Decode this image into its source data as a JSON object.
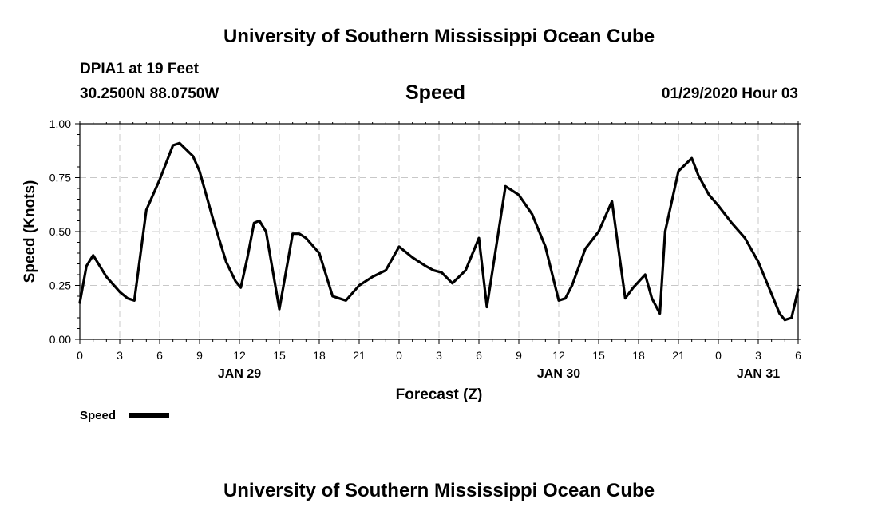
{
  "header": {
    "title_top": "University of Southern Mississippi Ocean Cube",
    "station": "DPIA1 at 19 Feet",
    "coords": "30.2500N 88.0750W",
    "plot_title": "Speed",
    "datetime": "01/29/2020 Hour 03"
  },
  "footer": {
    "title_bottom": "University of Southern Mississippi Ocean Cube"
  },
  "legend": {
    "label": "Speed"
  },
  "colors": {
    "line": "#000000",
    "grid": "#c8c8c8"
  },
  "chart_data": {
    "type": "line",
    "title": "Speed",
    "xlabel": "Forecast (Z)",
    "ylabel": "Speed (Knots)",
    "ylim": [
      0,
      1
    ],
    "xlim": [
      0,
      54
    ],
    "grid": true,
    "legend_placement": "bottom-left",
    "yticks": [
      "0.00",
      "0.25",
      "0.50",
      "0.75",
      "1.00"
    ],
    "xticks": [
      "0",
      "3",
      "6",
      "9",
      "12",
      "15",
      "18",
      "21",
      "0",
      "3",
      "6",
      "9",
      "12",
      "15",
      "18",
      "21",
      "0",
      "3",
      "6"
    ],
    "date_labels": [
      {
        "label": "JAN 29",
        "hour": 12
      },
      {
        "label": "JAN 30",
        "hour": 36
      },
      {
        "label": "JAN 31",
        "hour": 51
      }
    ],
    "series": [
      {
        "name": "Speed",
        "x": [
          0,
          0.5,
          1,
          2,
          3,
          3.6,
          4.1,
          5,
          6,
          7,
          7.5,
          8.5,
          9,
          10,
          11,
          11.7,
          12.1,
          12.6,
          13.1,
          13.5,
          14,
          15,
          16,
          16.5,
          17,
          18,
          19,
          19.5,
          20,
          21,
          22,
          23,
          24,
          25,
          26,
          26.6,
          27.2,
          28,
          29,
          30,
          30.6,
          32,
          32.5,
          33,
          34,
          35,
          36,
          36.5,
          37,
          38,
          39,
          40,
          41,
          41.6,
          42.5,
          43,
          43.6,
          44,
          45,
          46,
          46.5,
          47.3,
          48,
          49,
          50,
          51,
          52,
          52.6,
          53,
          53.5,
          54
        ],
        "values": [
          0.17,
          0.34,
          0.39,
          0.29,
          0.22,
          0.19,
          0.18,
          0.6,
          0.74,
          0.9,
          0.91,
          0.85,
          0.78,
          0.56,
          0.36,
          0.27,
          0.24,
          0.38,
          0.54,
          0.55,
          0.5,
          0.14,
          0.49,
          0.49,
          0.47,
          0.4,
          0.2,
          0.19,
          0.18,
          0.25,
          0.29,
          0.32,
          0.43,
          0.38,
          0.34,
          0.32,
          0.31,
          0.26,
          0.32,
          0.47,
          0.15,
          0.71,
          0.69,
          0.67,
          0.58,
          0.43,
          0.18,
          0.19,
          0.25,
          0.42,
          0.5,
          0.64,
          0.19,
          0.24,
          0.3,
          0.19,
          0.12,
          0.5,
          0.78,
          0.84,
          0.76,
          0.67,
          0.62,
          0.54,
          0.47,
          0.36,
          0.21,
          0.12,
          0.09,
          0.1,
          0.23
        ]
      }
    ]
  }
}
